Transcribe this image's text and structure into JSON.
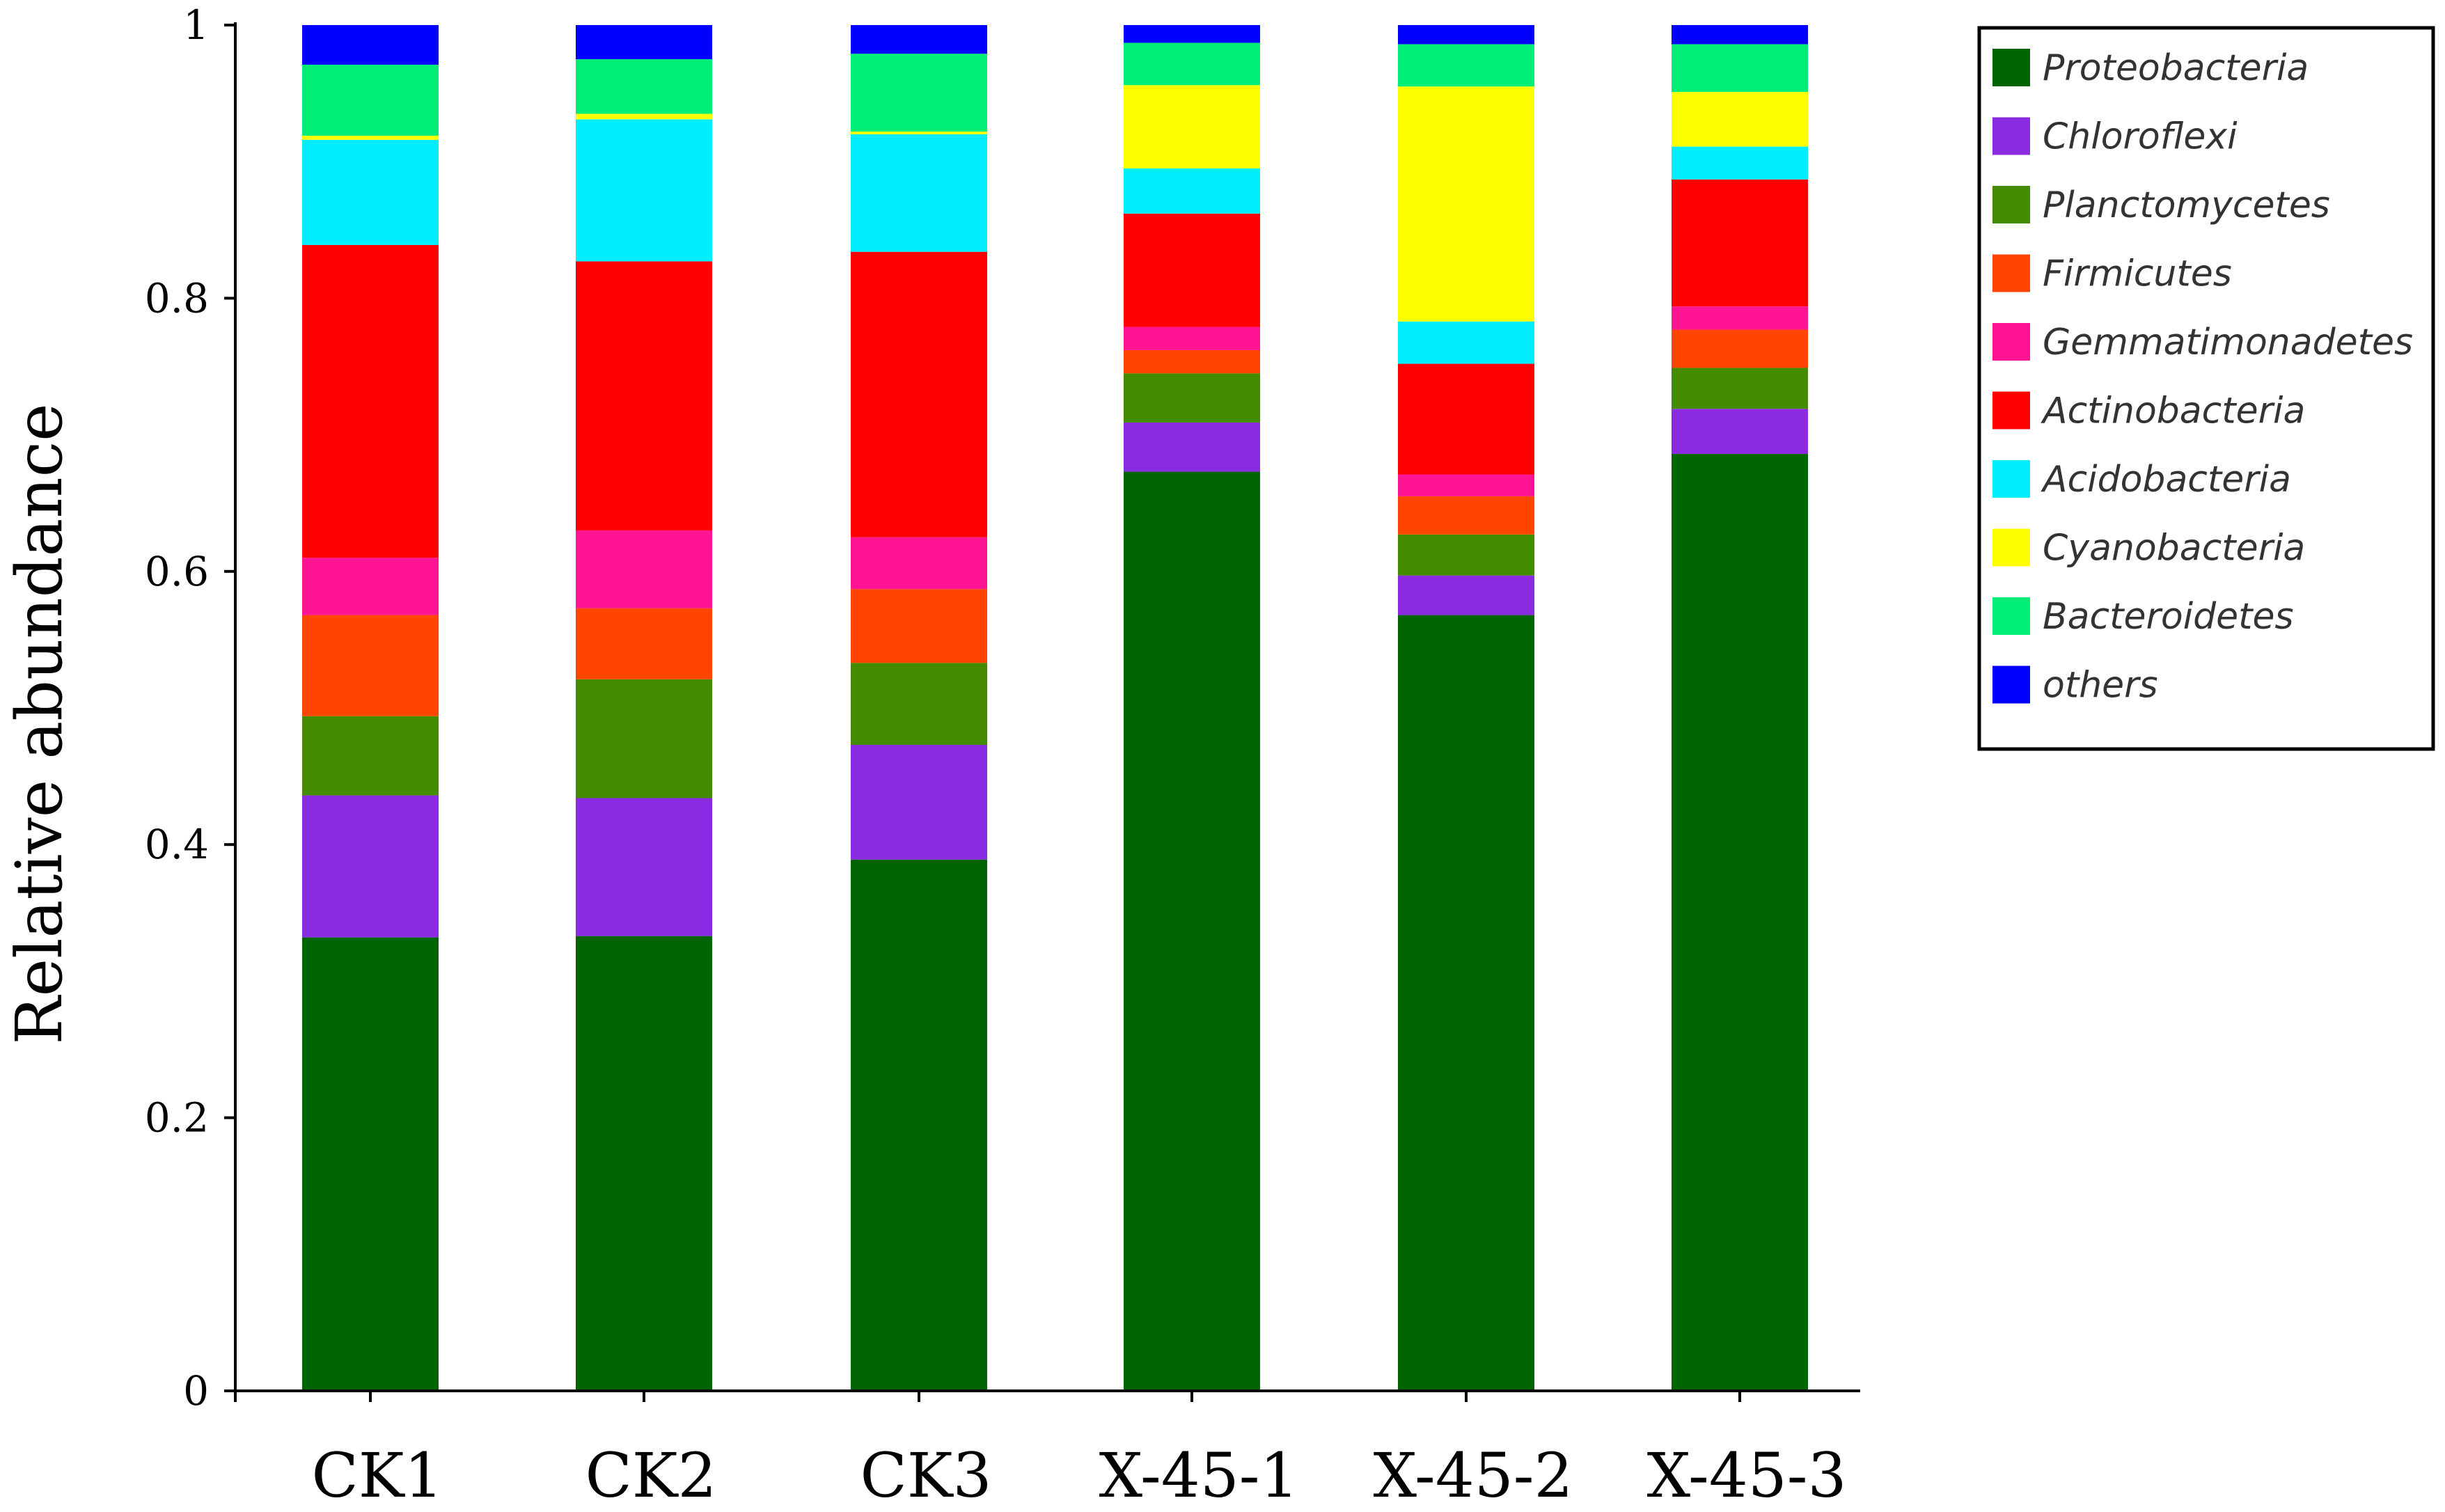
{
  "chart_data": {
    "type": "bar",
    "stacked": true,
    "title": "",
    "xlabel": "",
    "ylabel": "Relative abundance",
    "ylim": [
      0,
      1
    ],
    "yticks": [
      "0",
      "0.2",
      "0.4",
      "0.6",
      "0.8",
      "1"
    ],
    "yticks_values": [
      0,
      0.2,
      0.4,
      0.6,
      0.8,
      1
    ],
    "categories": [
      "CK1",
      "CK2",
      "CK3",
      "X-45-1",
      "X-45-2",
      "X-45-3"
    ],
    "legend_position": "top-right",
    "series": [
      {
        "name": "Proteobacteria",
        "color": "#006400",
        "values": [
          0.332,
          0.333,
          0.389,
          0.673,
          0.568,
          0.686
        ]
      },
      {
        "name": "Chloroflexi",
        "color": "#8A2BE2",
        "values": [
          0.104,
          0.101,
          0.084,
          0.036,
          0.029,
          0.033
        ]
      },
      {
        "name": "Planctomycetes",
        "color": "#458B00",
        "values": [
          0.058,
          0.087,
          0.06,
          0.036,
          0.03,
          0.03
        ]
      },
      {
        "name": "Firmicutes",
        "color": "#FF4500",
        "values": [
          0.074,
          0.052,
          0.054,
          0.017,
          0.028,
          0.028
        ]
      },
      {
        "name": "Gemmatimonadetes",
        "color": "#FF1493",
        "values": [
          0.042,
          0.057,
          0.038,
          0.017,
          0.016,
          0.017
        ]
      },
      {
        "name": "Actinobacteria",
        "color": "#FF0000",
        "values": [
          0.229,
          0.197,
          0.209,
          0.083,
          0.081,
          0.093
        ]
      },
      {
        "name": "Acidobacteria",
        "color": "#00EEFF",
        "values": [
          0.077,
          0.104,
          0.086,
          0.033,
          0.031,
          0.024
        ]
      },
      {
        "name": "Cyanobacteria",
        "color": "#FFFF00",
        "values": [
          0.003,
          0.004,
          0.002,
          0.061,
          0.172,
          0.04
        ]
      },
      {
        "name": "Bacteroidetes",
        "color": "#00EE76",
        "values": [
          0.052,
          0.04,
          0.057,
          0.031,
          0.031,
          0.035
        ]
      },
      {
        "name": "others",
        "color": "#0000FF",
        "values": [
          0.029,
          0.025,
          0.021,
          0.013,
          0.014,
          0.014
        ]
      }
    ]
  }
}
